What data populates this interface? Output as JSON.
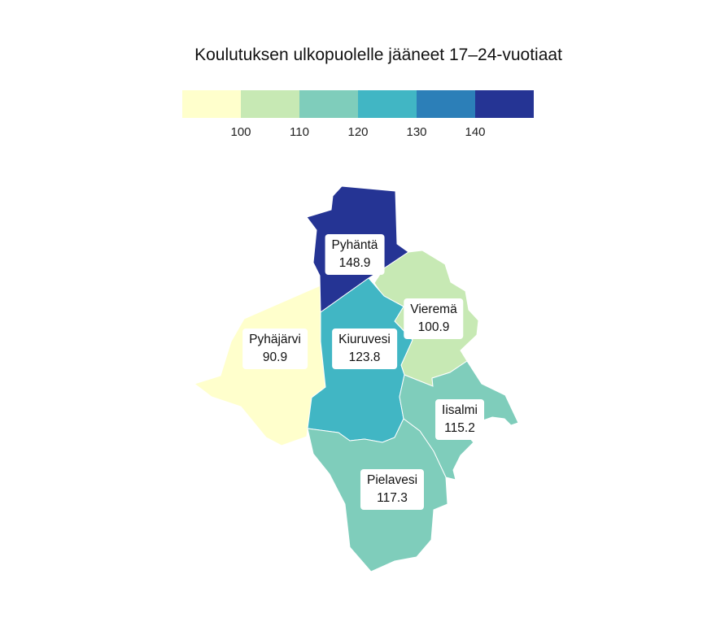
{
  "title": "Koulutuksen ulkopuolelle jääneet 17–24-vuotiaat",
  "legend": {
    "colors": [
      "#ffffcc",
      "#c7e9b4",
      "#7fcdbb",
      "#41b6c4",
      "#2c7fb8",
      "#253494"
    ],
    "ticks": [
      "100",
      "110",
      "120",
      "130",
      "140"
    ]
  },
  "municipalities": [
    {
      "name": "Pyhäntä",
      "value": "148.9",
      "color": "#253494"
    },
    {
      "name": "Vieremä",
      "value": "100.9",
      "color": "#c7e9b4"
    },
    {
      "name": "Pyhäjärvi",
      "value": "90.9",
      "color": "#ffffcc"
    },
    {
      "name": "Kiuruvesi",
      "value": "123.8",
      "color": "#41b6c4"
    },
    {
      "name": "Iisalmi",
      "value": "115.2",
      "color": "#7fcdbb"
    },
    {
      "name": "Pielavesi",
      "value": "117.3",
      "color": "#7fcdbb"
    }
  ]
}
